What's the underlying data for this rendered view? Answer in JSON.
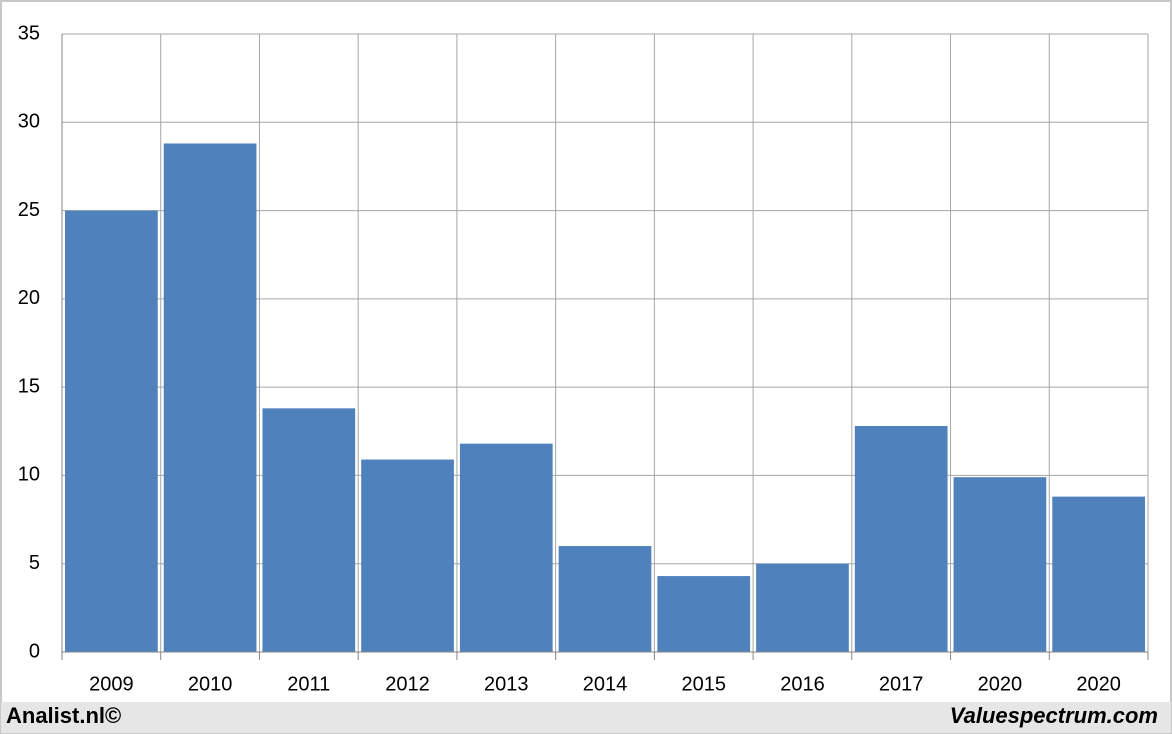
{
  "chart_data": {
    "type": "bar",
    "categories": [
      "2009",
      "2010",
      "2011",
      "2012",
      "2013",
      "2014",
      "2015",
      "2016",
      "2017",
      "2020",
      "2020"
    ],
    "values": [
      25,
      28.8,
      13.8,
      10.9,
      11.8,
      6.0,
      4.3,
      5.0,
      12.8,
      9.9,
      8.8
    ],
    "color": "#4f81bd",
    "ylim": [
      0,
      35
    ],
    "yticks": [
      0,
      5,
      10,
      15,
      20,
      25,
      30,
      35
    ],
    "grid": true
  },
  "footer": {
    "left": "Analist.nl©",
    "right": "Valuespectrum.com"
  }
}
